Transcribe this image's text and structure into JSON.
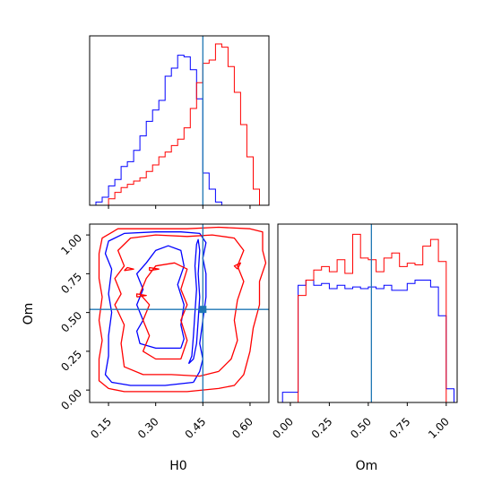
{
  "chart_data": {
    "type": "corner",
    "parameters": [
      "H0",
      "Om"
    ],
    "truth": {
      "H0": 0.45,
      "Om": 0.52
    },
    "colors": {
      "blue": "#0000ff",
      "red": "#ff0000",
      "truth": "#1f77b4"
    },
    "xlabels": [
      "H0",
      "Om"
    ],
    "ylabel": "Om",
    "h0_ticks": [
      "0.15",
      "0.30",
      "0.45",
      "0.60"
    ],
    "om_ticks": [
      "0.00",
      "0.25",
      "0.50",
      "0.75",
      "1.00"
    ],
    "h0_range": [
      0.09,
      0.66
    ],
    "om_range": [
      -0.08,
      1.07
    ],
    "h0_hist": {
      "edges": [
        0.09,
        0.11,
        0.13,
        0.15,
        0.17,
        0.19,
        0.21,
        0.23,
        0.25,
        0.27,
        0.29,
        0.31,
        0.33,
        0.35,
        0.37,
        0.39,
        0.41,
        0.43,
        0.45,
        0.47,
        0.49,
        0.51,
        0.53,
        0.55,
        0.57,
        0.59,
        0.61,
        0.63,
        0.65
      ],
      "series": [
        {
          "color": "blue",
          "values": [
            0,
            0.02,
            0.05,
            0.12,
            0.16,
            0.24,
            0.27,
            0.34,
            0.43,
            0.52,
            0.59,
            0.65,
            0.8,
            0.85,
            0.93,
            0.92,
            0.84,
            0.66,
            0.2,
            0.1,
            0.02,
            0,
            0,
            0,
            0,
            0,
            0,
            0
          ]
        },
        {
          "color": "red",
          "values": [
            0,
            0,
            0,
            0.04,
            0.08,
            0.11,
            0.13,
            0.15,
            0.17,
            0.21,
            0.25,
            0.3,
            0.33,
            0.37,
            0.41,
            0.48,
            0.6,
            0.76,
            0.88,
            0.9,
            1.0,
            0.98,
            0.86,
            0.7,
            0.5,
            0.3,
            0.1,
            0
          ]
        }
      ]
    },
    "om_hist": {
      "edges": [
        -0.1,
        -0.05,
        0.0,
        0.05,
        0.1,
        0.15,
        0.2,
        0.25,
        0.3,
        0.35,
        0.4,
        0.45,
        0.5,
        0.55,
        0.6,
        0.65,
        0.7,
        0.75,
        0.8,
        0.85,
        0.9,
        0.95,
        1.0,
        1.05
      ],
      "series": [
        {
          "color": "blue",
          "values": [
            0,
            0.06,
            0.06,
            0.69,
            0.72,
            0.69,
            0.7,
            0.67,
            0.69,
            0.67,
            0.68,
            0.67,
            0.68,
            0.67,
            0.69,
            0.66,
            0.66,
            0.7,
            0.72,
            0.72,
            0.68,
            0.51,
            0.08
          ]
        },
        {
          "color": "red",
          "values": [
            0,
            0,
            0,
            0.63,
            0.72,
            0.78,
            0.8,
            0.77,
            0.84,
            0.76,
            0.99,
            0.85,
            0.84,
            0.77,
            0.85,
            0.88,
            0.8,
            0.82,
            0.81,
            0.92,
            0.96,
            0.83,
            0
          ]
        }
      ]
    },
    "contours": [
      {
        "color": "blue",
        "points": [
          [
            0.42,
            0.05
          ],
          [
            0.33,
            0.03
          ],
          [
            0.22,
            0.03
          ],
          [
            0.16,
            0.05
          ],
          [
            0.14,
            0.1
          ],
          [
            0.15,
            0.22
          ],
          [
            0.15,
            0.35
          ],
          [
            0.16,
            0.5
          ],
          [
            0.15,
            0.62
          ],
          [
            0.16,
            0.78
          ],
          [
            0.14,
            0.88
          ],
          [
            0.15,
            0.96
          ],
          [
            0.2,
            1.01
          ],
          [
            0.3,
            1.02
          ],
          [
            0.38,
            1.02
          ],
          [
            0.44,
            1.01
          ],
          [
            0.46,
            0.95
          ],
          [
            0.45,
            0.85
          ],
          [
            0.46,
            0.75
          ],
          [
            0.46,
            0.6
          ],
          [
            0.45,
            0.45
          ],
          [
            0.44,
            0.3
          ],
          [
            0.45,
            0.2
          ],
          [
            0.44,
            0.12
          ],
          [
            0.42,
            0.05
          ]
        ]
      },
      {
        "color": "blue",
        "points": [
          [
            0.38,
            0.27
          ],
          [
            0.3,
            0.27
          ],
          [
            0.25,
            0.3
          ],
          [
            0.24,
            0.38
          ],
          [
            0.26,
            0.45
          ],
          [
            0.24,
            0.55
          ],
          [
            0.26,
            0.65
          ],
          [
            0.24,
            0.75
          ],
          [
            0.27,
            0.82
          ],
          [
            0.3,
            0.9
          ],
          [
            0.34,
            0.93
          ],
          [
            0.38,
            0.9
          ],
          [
            0.39,
            0.8
          ],
          [
            0.37,
            0.68
          ],
          [
            0.39,
            0.55
          ],
          [
            0.38,
            0.42
          ],
          [
            0.39,
            0.33
          ],
          [
            0.38,
            0.27
          ]
        ]
      },
      {
        "color": "blue",
        "points": [
          [
            0.405,
            0.17
          ],
          [
            0.415,
            0.22
          ],
          [
            0.42,
            0.35
          ],
          [
            0.425,
            0.5
          ],
          [
            0.43,
            0.65
          ],
          [
            0.425,
            0.8
          ],
          [
            0.43,
            0.94
          ],
          [
            0.435,
            0.97
          ],
          [
            0.44,
            0.9
          ],
          [
            0.435,
            0.75
          ],
          [
            0.44,
            0.6
          ],
          [
            0.435,
            0.45
          ],
          [
            0.43,
            0.3
          ],
          [
            0.42,
            0.2
          ],
          [
            0.405,
            0.17
          ]
        ]
      },
      {
        "color": "red",
        "points": [
          [
            0.5,
            0.01
          ],
          [
            0.4,
            -0.01
          ],
          [
            0.3,
            -0.01
          ],
          [
            0.2,
            -0.01
          ],
          [
            0.15,
            0.01
          ],
          [
            0.12,
            0.06
          ],
          [
            0.12,
            0.2
          ],
          [
            0.13,
            0.32
          ],
          [
            0.12,
            0.45
          ],
          [
            0.13,
            0.6
          ],
          [
            0.12,
            0.72
          ],
          [
            0.12,
            0.88
          ],
          [
            0.13,
            0.98
          ],
          [
            0.18,
            1.04
          ],
          [
            0.28,
            1.04
          ],
          [
            0.4,
            1.04
          ],
          [
            0.5,
            1.05
          ],
          [
            0.6,
            1.04
          ],
          [
            0.64,
            1.02
          ],
          [
            0.64,
            0.9
          ],
          [
            0.65,
            0.82
          ],
          [
            0.63,
            0.7
          ],
          [
            0.63,
            0.55
          ],
          [
            0.61,
            0.4
          ],
          [
            0.6,
            0.25
          ],
          [
            0.58,
            0.1
          ],
          [
            0.55,
            0.03
          ],
          [
            0.5,
            0.01
          ]
        ]
      },
      {
        "color": "red",
        "points": [
          [
            0.5,
            0.12
          ],
          [
            0.44,
            0.09
          ],
          [
            0.35,
            0.1
          ],
          [
            0.26,
            0.1
          ],
          [
            0.2,
            0.15
          ],
          [
            0.19,
            0.3
          ],
          [
            0.2,
            0.42
          ],
          [
            0.17,
            0.55
          ],
          [
            0.19,
            0.62
          ],
          [
            0.17,
            0.72
          ],
          [
            0.2,
            0.8
          ],
          [
            0.18,
            0.9
          ],
          [
            0.22,
            0.98
          ],
          [
            0.3,
            1.0
          ],
          [
            0.4,
            0.99
          ],
          [
            0.48,
            1.0
          ],
          [
            0.55,
            0.98
          ],
          [
            0.58,
            0.9
          ],
          [
            0.56,
            0.8
          ],
          [
            0.58,
            0.7
          ],
          [
            0.56,
            0.58
          ],
          [
            0.55,
            0.45
          ],
          [
            0.56,
            0.32
          ],
          [
            0.54,
            0.2
          ],
          [
            0.5,
            0.12
          ]
        ]
      },
      {
        "color": "red",
        "points": [
          [
            0.38,
            0.2
          ],
          [
            0.3,
            0.2
          ],
          [
            0.26,
            0.25
          ],
          [
            0.28,
            0.35
          ],
          [
            0.26,
            0.45
          ],
          [
            0.28,
            0.55
          ],
          [
            0.25,
            0.62
          ],
          [
            0.27,
            0.72
          ],
          [
            0.3,
            0.8
          ],
          [
            0.36,
            0.82
          ],
          [
            0.4,
            0.78
          ],
          [
            0.38,
            0.65
          ],
          [
            0.4,
            0.55
          ],
          [
            0.38,
            0.45
          ],
          [
            0.4,
            0.32
          ],
          [
            0.38,
            0.2
          ]
        ]
      },
      {
        "color": "red",
        "points": [
          [
            0.2,
            0.77
          ],
          [
            0.23,
            0.78
          ],
          [
            0.21,
            0.79
          ],
          [
            0.2,
            0.77
          ]
        ]
      },
      {
        "color": "red",
        "points": [
          [
            0.28,
            0.77
          ],
          [
            0.31,
            0.78
          ],
          [
            0.28,
            0.79
          ],
          [
            0.28,
            0.77
          ]
        ]
      },
      {
        "color": "red",
        "points": [
          [
            0.24,
            0.6
          ],
          [
            0.27,
            0.61
          ],
          [
            0.24,
            0.62
          ],
          [
            0.24,
            0.6
          ]
        ]
      },
      {
        "color": "red",
        "points": [
          [
            0.56,
            0.78
          ],
          [
            0.57,
            0.82
          ],
          [
            0.55,
            0.8
          ],
          [
            0.56,
            0.78
          ]
        ]
      }
    ]
  }
}
